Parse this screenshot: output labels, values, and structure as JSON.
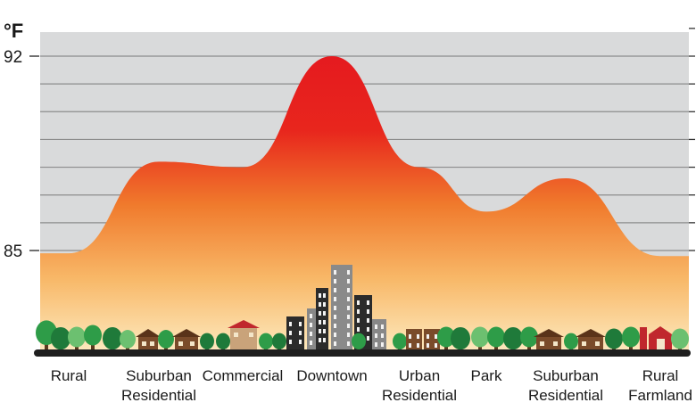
{
  "chart_data": {
    "type": "area",
    "title": "",
    "xlabel": "",
    "ylabel": "°F",
    "ylim": [
      84,
      93
    ],
    "y_ticks": [
      85,
      92
    ],
    "grid": true,
    "categories": [
      [
        "Rural"
      ],
      [
        "Suburban",
        "Residential"
      ],
      [
        "Commercial"
      ],
      [
        "Downtown"
      ],
      [
        "Urban",
        "Residential"
      ],
      [
        "Park"
      ],
      [
        "Suburban",
        "Residential"
      ],
      [
        "Rural",
        "Farmland"
      ]
    ],
    "series": [
      {
        "values": [
          84.9,
          88.2,
          88.0,
          92.0,
          88.0,
          86.4,
          87.6,
          84.8
        ]
      }
    ],
    "colors": {
      "peak": "#e51a1f",
      "mid": "#f07a2c",
      "base": "#fde6b4",
      "plot_background": "#d9dadb",
      "gridline": "#8c8c8c",
      "ground": "#1e1e1e"
    }
  }
}
